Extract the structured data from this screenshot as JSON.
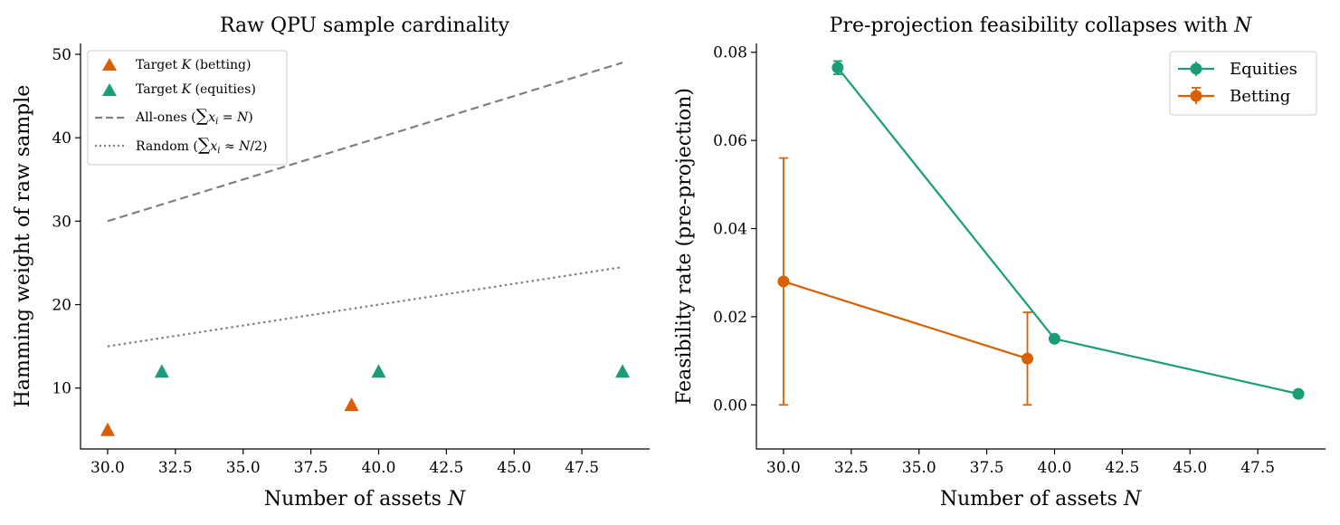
{
  "chart_data": [
    {
      "type": "scatter",
      "title": "Raw QPU sample cardinality",
      "xlabel": "Number of assets N",
      "ylabel": "Hamming weight of raw sample",
      "xlim": [
        29.0,
        50.0
      ],
      "ylim": [
        2.7,
        51.3
      ],
      "xticks": [
        "30.0",
        "32.5",
        "35.0",
        "37.5",
        "40.0",
        "42.5",
        "45.0",
        "47.5"
      ],
      "yticks": [
        "10",
        "20",
        "30",
        "40",
        "50"
      ],
      "legend_position": "top-left",
      "series": [
        {
          "name": "Target K (betting)",
          "marker": "triangle",
          "color": "#d95f02",
          "x": [
            30,
            39
          ],
          "y": [
            5,
            8
          ]
        },
        {
          "name": "Target K (equities)",
          "marker": "triangle",
          "color": "#1b9e77",
          "x": [
            32,
            40,
            49
          ],
          "y": [
            12,
            12,
            12
          ]
        },
        {
          "name": "All-ones (∑xᵢ = N)",
          "style": "dashed",
          "color": "#808080",
          "x": [
            30,
            49
          ],
          "y": [
            30,
            49
          ]
        },
        {
          "name": "Random (∑xᵢ ≈ N/2)",
          "style": "dotted",
          "color": "#808080",
          "x": [
            30,
            49
          ],
          "y": [
            15,
            24.5
          ]
        }
      ]
    },
    {
      "type": "line",
      "title": "Pre-projection feasibility collapses with N",
      "xlabel": "Number of assets N",
      "ylabel": "Feasibility rate (pre-projection)",
      "xlim": [
        29.0,
        50.0
      ],
      "ylim": [
        -0.01,
        0.082
      ],
      "xticks": [
        "30.0",
        "32.5",
        "35.0",
        "37.5",
        "40.0",
        "42.5",
        "45.0",
        "47.5"
      ],
      "yticks": [
        "0.00",
        "0.02",
        "0.04",
        "0.06",
        "0.08"
      ],
      "legend_position": "top-right",
      "series": [
        {
          "name": "Equities",
          "color": "#1b9e77",
          "x": [
            32,
            40,
            49
          ],
          "y": [
            0.0765,
            0.015,
            0.0025
          ],
          "err": [
            0.0015,
            0,
            0
          ]
        },
        {
          "name": "Betting",
          "color": "#d95f02",
          "x": [
            30,
            39
          ],
          "y": [
            0.028,
            0.0105
          ],
          "err": [
            0.028,
            0.0105
          ]
        }
      ]
    }
  ]
}
